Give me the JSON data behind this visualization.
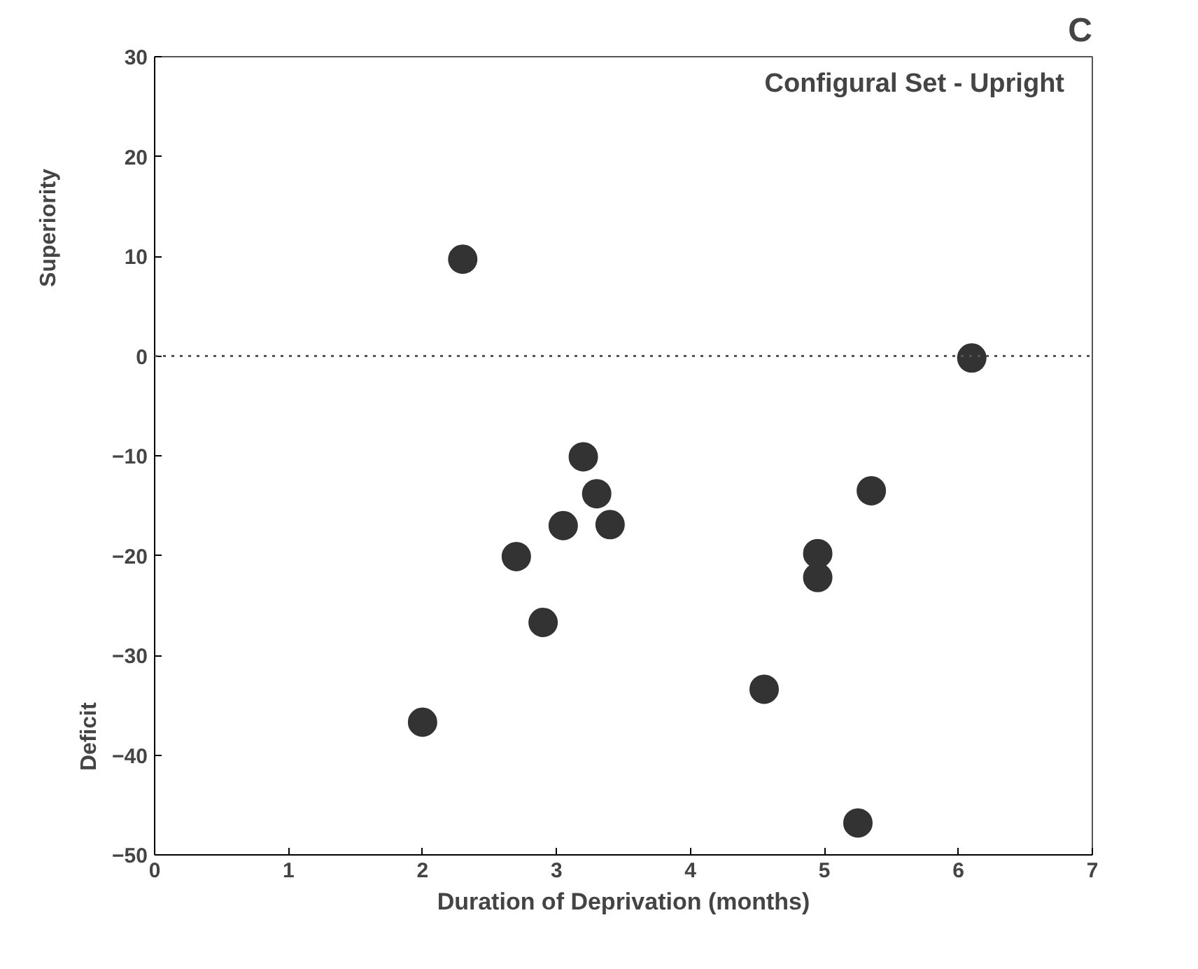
{
  "chart_data": {
    "type": "scatter",
    "title": "Configural Set - Upright",
    "xlabel": "Duration of Deprivation (months)",
    "annotations": [
      "Deficit",
      "Superiority",
      "C"
    ],
    "x": [
      2.0,
      2.3,
      2.7,
      2.9,
      3.05,
      3.2,
      3.3,
      3.4,
      4.55,
      4.95,
      4.95,
      5.25,
      5.35,
      6.1
    ],
    "series": [
      {
        "color": "#333333",
        "values": [
          -36.7,
          9.7,
          -20.1,
          -26.7,
          -17,
          -10.1,
          -13.8,
          -16.9,
          -33.4,
          -22.2,
          -19.8,
          -46.8,
          -13.5,
          -0.2
        ]
      }
    ],
    "xlim": [
      0,
      7
    ],
    "xticks": [
      0,
      1,
      2,
      3,
      4,
      5,
      6,
      7
    ],
    "ylim": [
      -50,
      30
    ],
    "yticks": [
      -50,
      -40,
      -30,
      -20,
      -10,
      0,
      10,
      20,
      30
    ],
    "ref_lines": [
      {
        "axis": "y",
        "value": 0,
        "line_style": "dotted",
        "color": "#555555"
      }
    ],
    "grid": false,
    "marker": "circle"
  }
}
